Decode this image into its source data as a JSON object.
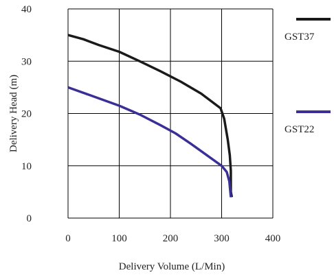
{
  "chart_data": {
    "type": "line",
    "xlabel": "Delivery Volume (L/Min)",
    "ylabel": "Delivery Head (m)",
    "xlim": [
      0,
      400
    ],
    "ylim": [
      0,
      40
    ],
    "x_ticks": [
      "0",
      "100",
      "200",
      "300",
      "400"
    ],
    "y_ticks": [
      "0",
      "10",
      "20",
      "30",
      "40"
    ],
    "grid": true,
    "legend_position": "right",
    "series": [
      {
        "name": "GST37",
        "color": "#1a1a1a",
        "points": [
          [
            0,
            35
          ],
          [
            30,
            34.2
          ],
          [
            60,
            33.1
          ],
          [
            100,
            31.8
          ],
          [
            140,
            30
          ],
          [
            180,
            28.1
          ],
          [
            220,
            26.1
          ],
          [
            260,
            23.8
          ],
          [
            298,
            21
          ],
          [
            305,
            19
          ],
          [
            312,
            15
          ],
          [
            316,
            12
          ],
          [
            318,
            9
          ],
          [
            318,
            5
          ],
          [
            320,
            4
          ]
        ]
      },
      {
        "name": "GST22",
        "color": "#3a2f96",
        "points": [
          [
            0,
            25
          ],
          [
            40,
            23.6
          ],
          [
            100,
            21.5
          ],
          [
            140,
            19.8
          ],
          [
            180,
            17.8
          ],
          [
            210,
            16.2
          ],
          [
            240,
            14.2
          ],
          [
            270,
            12.1
          ],
          [
            300,
            10
          ],
          [
            310,
            8.8
          ],
          [
            315,
            7
          ],
          [
            318,
            4
          ]
        ]
      }
    ]
  }
}
